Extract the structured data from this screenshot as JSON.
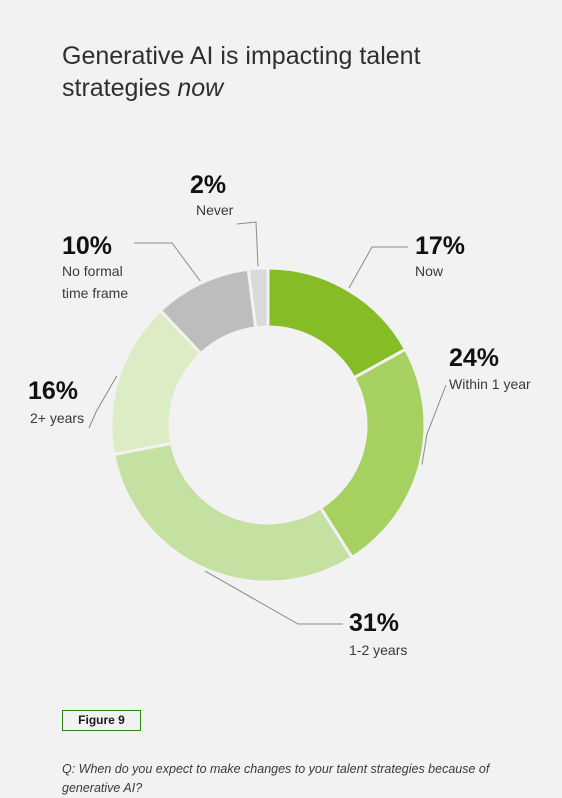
{
  "title": {
    "main": "Generative AI is impacting talent strategies",
    "emphasis": "now"
  },
  "figure_label": "Figure 9",
  "question": "Q: When do you expect to make changes to your talent strategies because of generative AI?",
  "colors": {
    "now": "#86bc25",
    "within1": "#a6d05f",
    "y12": "#c5e1a1",
    "y2plus": "#dcecc4",
    "noframe": "#bdbdbd",
    "never": "#d9d9d9",
    "leader": "#8a8a8a"
  },
  "chart_data": {
    "type": "pie",
    "donut": true,
    "title": "Generative AI is impacting talent strategies now",
    "slices": [
      {
        "label": "Now",
        "value": 17,
        "display": "17%",
        "color": "#86bc25"
      },
      {
        "label": "Within 1 year",
        "value": 24,
        "display": "24%",
        "color": "#a6d05f"
      },
      {
        "label": "1-2 years",
        "value": 31,
        "display": "31%",
        "color": "#c5e1a1"
      },
      {
        "label": "2+ years",
        "value": 16,
        "display": "16%",
        "color": "#dcecc4"
      },
      {
        "label": "No formal time frame",
        "value": 10,
        "display": "10%",
        "color": "#bdbdbd"
      },
      {
        "label": "Never",
        "value": 2,
        "display": "2%",
        "color": "#d9d9d9"
      }
    ]
  }
}
